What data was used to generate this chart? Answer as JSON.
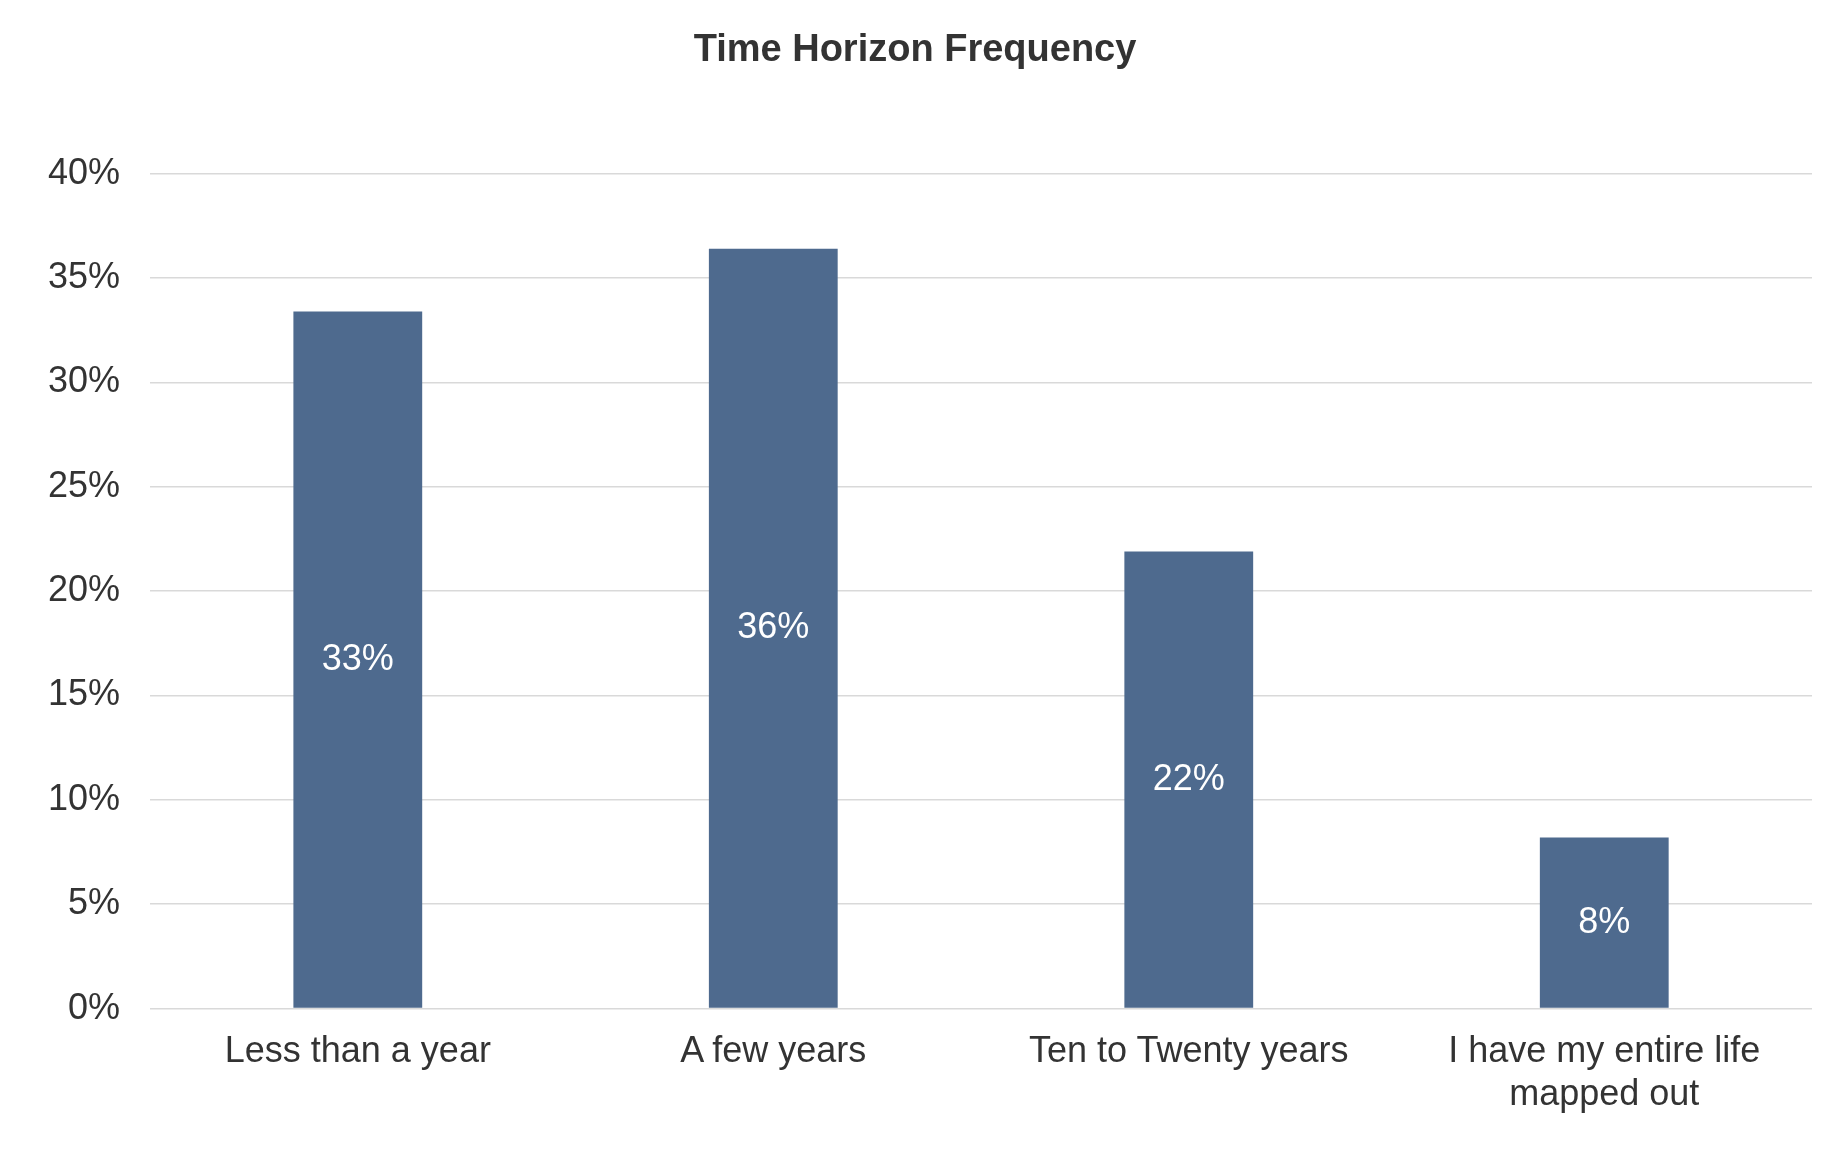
{
  "chart_data": {
    "type": "bar",
    "title": "Time Horizon Frequency",
    "categories": [
      "Less than a year",
      "A few years",
      "Ten to Twenty years",
      "I have my entire life mapped out"
    ],
    "values": [
      33.4,
      36.4,
      21.9,
      8.2
    ],
    "value_labels": [
      "33%",
      "36%",
      "22%",
      "8%"
    ],
    "color": "#4e6a8e",
    "ylim": [
      0,
      40
    ],
    "yticks": [
      {
        "value": 0,
        "label": "0%"
      },
      {
        "value": 5,
        "label": "5%"
      },
      {
        "value": 10,
        "label": "10%"
      },
      {
        "value": 15,
        "label": "15%"
      },
      {
        "value": 20,
        "label": "20%"
      },
      {
        "value": 25,
        "label": "25%"
      },
      {
        "value": 30,
        "label": "30%"
      },
      {
        "value": 35,
        "label": "35%"
      },
      {
        "value": 40,
        "label": "40%"
      }
    ],
    "grid": "y",
    "legend": false
  }
}
